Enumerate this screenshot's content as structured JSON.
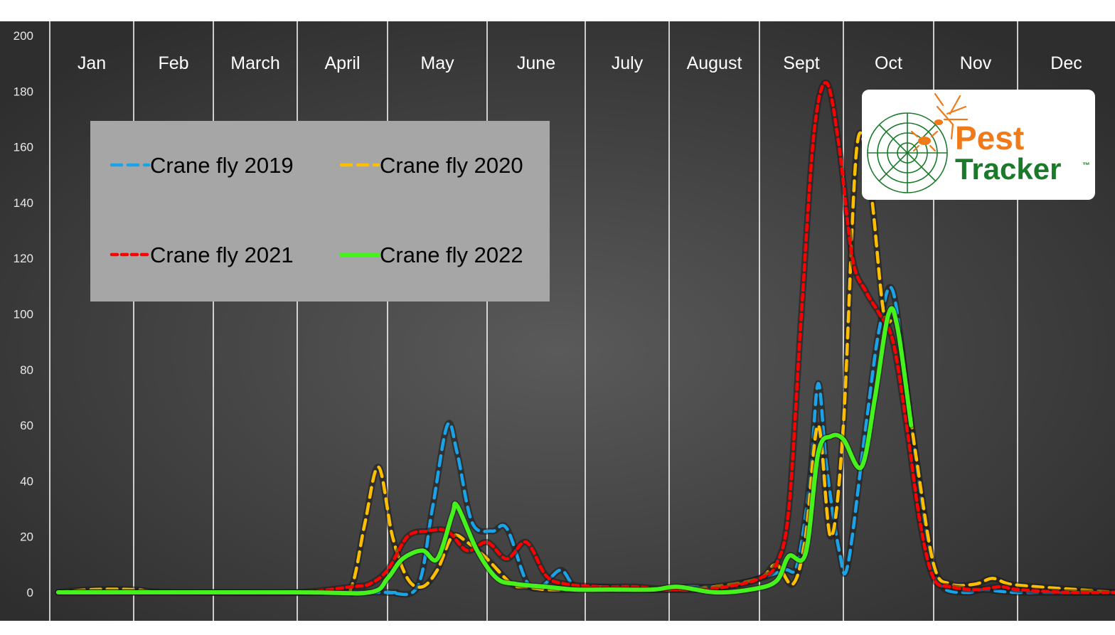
{
  "chart_data": {
    "type": "line",
    "title": "",
    "xlabel": "",
    "ylabel": "",
    "ylim": [
      0,
      200
    ],
    "yticks": [
      0,
      20,
      40,
      60,
      80,
      100,
      120,
      140,
      160,
      180,
      200
    ],
    "xlim": [
      0,
      12
    ],
    "months": [
      "Jan",
      "Feb",
      "March",
      "April",
      "May",
      "June",
      "July",
      "August",
      "Sept",
      "Oct",
      "Nov",
      "Dec"
    ],
    "grid": true,
    "legend_position": "top-left",
    "series": [
      {
        "name": "Crane fly 2019",
        "color": "#1aa3e8",
        "dash": "dashed",
        "points": [
          [
            0.1,
            0
          ],
          [
            3.8,
            0
          ],
          [
            4.0,
            0
          ],
          [
            4.3,
            2
          ],
          [
            4.45,
            30
          ],
          [
            4.6,
            60
          ],
          [
            4.7,
            50
          ],
          [
            4.85,
            25
          ],
          [
            5.05,
            22
          ],
          [
            5.2,
            23
          ],
          [
            5.4,
            4
          ],
          [
            5.55,
            2
          ],
          [
            5.75,
            8
          ],
          [
            5.9,
            2
          ],
          [
            6.2,
            1
          ],
          [
            6.8,
            1
          ],
          [
            7.2,
            2
          ],
          [
            7.6,
            2
          ],
          [
            8.0,
            5
          ],
          [
            8.3,
            8
          ],
          [
            8.45,
            10
          ],
          [
            8.6,
            40
          ],
          [
            8.7,
            75
          ],
          [
            8.8,
            45
          ],
          [
            8.95,
            15
          ],
          [
            9.05,
            10
          ],
          [
            9.25,
            60
          ],
          [
            9.4,
            95
          ],
          [
            9.55,
            108
          ],
          [
            9.75,
            60
          ],
          [
            9.95,
            15
          ],
          [
            10.1,
            2
          ],
          [
            10.4,
            0
          ],
          [
            10.6,
            1
          ],
          [
            11.0,
            0
          ],
          [
            12.0,
            0
          ]
        ]
      },
      {
        "name": "Crane fly 2020",
        "color": "#ffbf00",
        "dash": "dashed",
        "points": [
          [
            0.1,
            0
          ],
          [
            0.5,
            1
          ],
          [
            1.0,
            1
          ],
          [
            1.5,
            0
          ],
          [
            3.4,
            0
          ],
          [
            3.6,
            2
          ],
          [
            3.75,
            25
          ],
          [
            3.9,
            45
          ],
          [
            4.05,
            20
          ],
          [
            4.2,
            5
          ],
          [
            4.35,
            2
          ],
          [
            4.5,
            8
          ],
          [
            4.65,
            20
          ],
          [
            4.8,
            18
          ],
          [
            5.0,
            12
          ],
          [
            5.25,
            3
          ],
          [
            5.4,
            2
          ],
          [
            5.6,
            1
          ],
          [
            5.9,
            1
          ],
          [
            6.2,
            2
          ],
          [
            6.6,
            1
          ],
          [
            7.1,
            1
          ],
          [
            7.5,
            2
          ],
          [
            8.0,
            5
          ],
          [
            8.2,
            10
          ],
          [
            8.4,
            3
          ],
          [
            8.55,
            20
          ],
          [
            8.7,
            60
          ],
          [
            8.85,
            20
          ],
          [
            9.0,
            60
          ],
          [
            9.15,
            160
          ],
          [
            9.3,
            145
          ],
          [
            9.45,
            100
          ],
          [
            9.6,
            95
          ],
          [
            9.8,
            50
          ],
          [
            10.0,
            10
          ],
          [
            10.2,
            3
          ],
          [
            10.5,
            3
          ],
          [
            10.7,
            5
          ],
          [
            10.9,
            3
          ],
          [
            11.2,
            2
          ],
          [
            11.6,
            1
          ],
          [
            12.0,
            0
          ]
        ]
      },
      {
        "name": "Crane fly 2021",
        "color": "#ff0000",
        "dash": "dotted",
        "points": [
          [
            0.1,
            0
          ],
          [
            2.0,
            0
          ],
          [
            3.0,
            0
          ],
          [
            3.6,
            2
          ],
          [
            3.8,
            3
          ],
          [
            4.0,
            8
          ],
          [
            4.2,
            20
          ],
          [
            4.4,
            22
          ],
          [
            4.6,
            22
          ],
          [
            4.8,
            15
          ],
          [
            5.0,
            18
          ],
          [
            5.2,
            12
          ],
          [
            5.4,
            18
          ],
          [
            5.6,
            6
          ],
          [
            5.8,
            3
          ],
          [
            6.2,
            2
          ],
          [
            6.6,
            2
          ],
          [
            7.0,
            1
          ],
          [
            7.4,
            1
          ],
          [
            7.8,
            3
          ],
          [
            8.0,
            5
          ],
          [
            8.2,
            10
          ],
          [
            8.35,
            30
          ],
          [
            8.5,
            100
          ],
          [
            8.65,
            165
          ],
          [
            8.8,
            183
          ],
          [
            8.95,
            160
          ],
          [
            9.1,
            120
          ],
          [
            9.25,
            108
          ],
          [
            9.4,
            100
          ],
          [
            9.55,
            90
          ],
          [
            9.7,
            60
          ],
          [
            9.85,
            25
          ],
          [
            10.0,
            5
          ],
          [
            10.2,
            2
          ],
          [
            10.5,
            1
          ],
          [
            10.8,
            2
          ],
          [
            11.0,
            1
          ],
          [
            11.5,
            0
          ],
          [
            12.0,
            0
          ]
        ]
      },
      {
        "name": "Crane fly 2022",
        "color": "#45f21c",
        "dash": "solid",
        "points": [
          [
            0.1,
            0
          ],
          [
            3.0,
            0
          ],
          [
            3.8,
            0
          ],
          [
            4.0,
            5
          ],
          [
            4.15,
            12
          ],
          [
            4.35,
            15
          ],
          [
            4.5,
            12
          ],
          [
            4.65,
            28
          ],
          [
            4.7,
            31
          ],
          [
            4.9,
            15
          ],
          [
            5.1,
            5
          ],
          [
            5.3,
            3
          ],
          [
            5.6,
            2
          ],
          [
            5.9,
            1
          ],
          [
            6.3,
            1
          ],
          [
            6.8,
            1
          ],
          [
            7.1,
            2
          ],
          [
            7.5,
            0
          ],
          [
            7.9,
            1
          ],
          [
            8.2,
            4
          ],
          [
            8.35,
            13
          ],
          [
            8.55,
            14
          ],
          [
            8.7,
            50
          ],
          [
            8.85,
            56
          ],
          [
            9.0,
            55
          ],
          [
            9.2,
            45
          ],
          [
            9.35,
            70
          ],
          [
            9.5,
            100
          ],
          [
            9.6,
            95
          ],
          [
            9.75,
            60
          ]
        ]
      }
    ]
  },
  "logo": {
    "line1": "Pest",
    "line2": "Tracker",
    "trademark": "™",
    "green": "#1a7a2a",
    "orange": "#f07a1a"
  },
  "colors": {
    "plot_background": "#3a3a3a",
    "grid_line": "#ffffff",
    "legend_box": "#a6a6a6"
  }
}
